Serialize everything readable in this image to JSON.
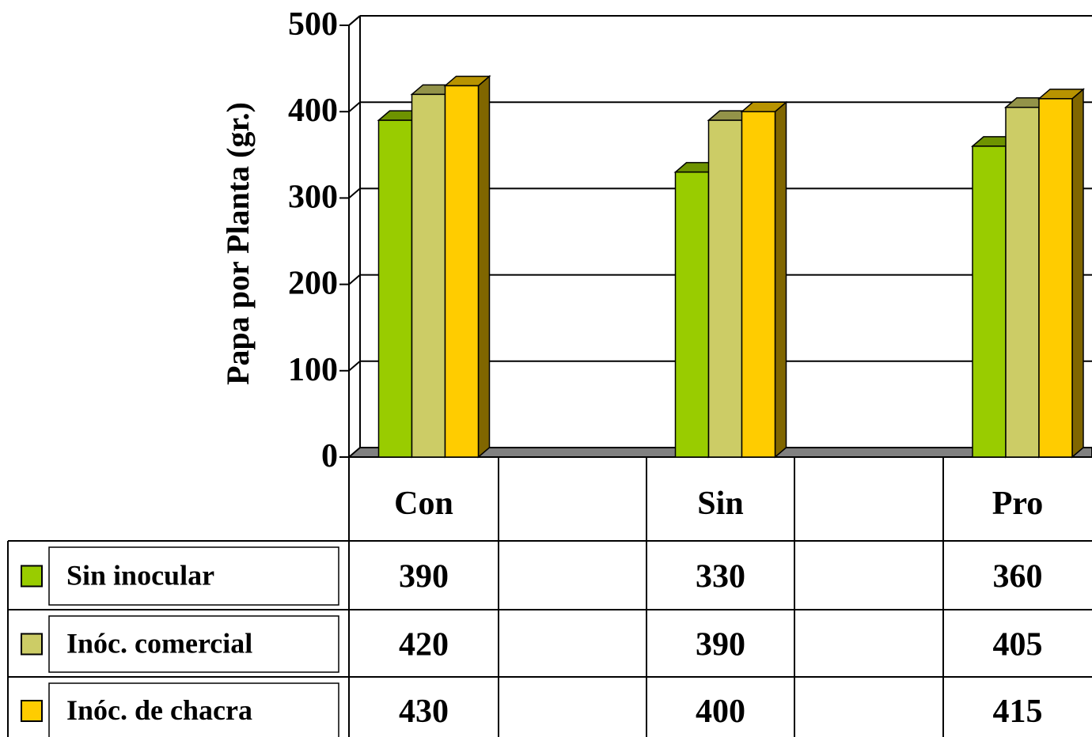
{
  "chart_data": {
    "type": "bar",
    "ylabel": "Papa por Planta (gr.)",
    "ylim": [
      0,
      500
    ],
    "yticks": [
      "0",
      "100",
      "200",
      "300",
      "400",
      "500"
    ],
    "categories": [
      "Con",
      "",
      "Sin",
      "",
      "Pro"
    ],
    "series": [
      {
        "name": "Sin inocular",
        "color": "#99cc00",
        "values": [
          390,
          null,
          330,
          null,
          360
        ]
      },
      {
        "name": "Inóc. comercial",
        "color": "#cccc66",
        "values": [
          420,
          null,
          390,
          null,
          405
        ]
      },
      {
        "name": "Inóc. de chacra",
        "color": "#ffcc00",
        "values": [
          430,
          null,
          400,
          null,
          415
        ]
      }
    ],
    "grid": true,
    "data_table": true
  }
}
